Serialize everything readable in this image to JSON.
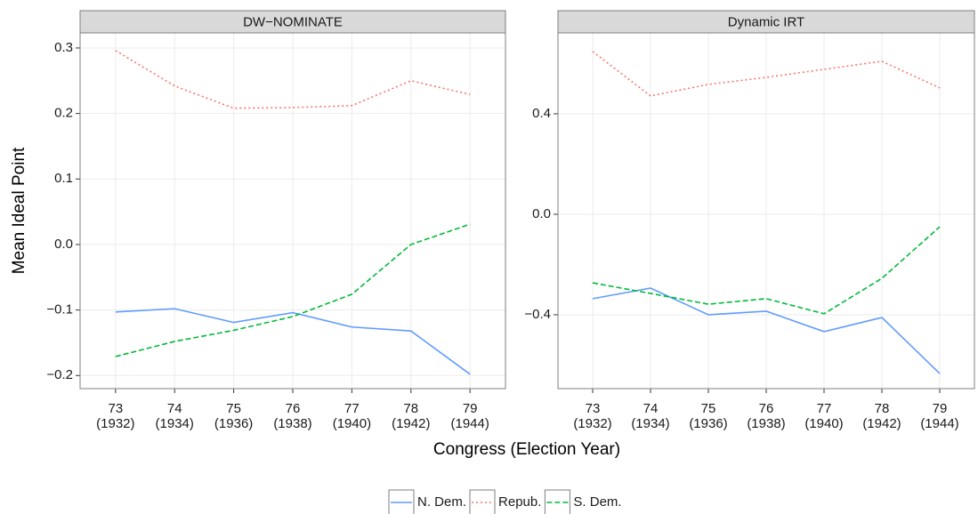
{
  "xlabel": "Congress (Election Year)",
  "ylabel": "Mean Ideal Point",
  "legend": "bottom",
  "chart_data": [
    {
      "type": "line",
      "title": "DW−NOMINATE",
      "categories": [
        "73",
        "74",
        "75",
        "76",
        "77",
        "78",
        "79"
      ],
      "election_years": [
        "(1932)",
        "(1934)",
        "(1936)",
        "(1938)",
        "(1940)",
        "(1942)",
        "(1944)"
      ],
      "ylim": [
        -0.22,
        0.323
      ],
      "yticks": [
        {
          "value": -0.2,
          "label": "−0.2"
        },
        {
          "value": -0.1,
          "label": "−0.1"
        },
        {
          "value": 0,
          "label": "0.0"
        },
        0.1,
        0.2,
        0.3
      ],
      "grid": true,
      "series": [
        {
          "name": "N. Dem.",
          "color": "#619CFF",
          "linestyle": "solid",
          "values": [
            -0.103,
            -0.098,
            -0.119,
            -0.104,
            -0.126,
            -0.132,
            -0.198
          ]
        },
        {
          "name": "Repub.",
          "color": "#F8766D",
          "linestyle": "dotted",
          "values": [
            0.296,
            0.242,
            0.208,
            0.209,
            0.212,
            0.25,
            0.229
          ]
        },
        {
          "name": "S. Dem.",
          "color": "#00BA38",
          "linestyle": "dashed",
          "values": [
            -0.171,
            -0.148,
            -0.131,
            -0.11,
            -0.076,
            0.0,
            0.031
          ]
        }
      ]
    },
    {
      "type": "line",
      "title": "Dynamic IRT",
      "categories": [
        "73",
        "74",
        "75",
        "76",
        "77",
        "78",
        "79"
      ],
      "election_years": [
        "(1932)",
        "(1934)",
        "(1936)",
        "(1938)",
        "(1940)",
        "(1942)",
        "(1944)"
      ],
      "ylim": [
        -0.694,
        0.722
      ],
      "yticks": [
        {
          "value": -0.4,
          "label": "−0.4"
        },
        {
          "value": 0,
          "label": "0.0"
        },
        0.4
      ],
      "grid": true,
      "series": [
        {
          "name": "N. Dem.",
          "color": "#619CFF",
          "linestyle": "solid",
          "values": [
            -0.336,
            -0.294,
            -0.4,
            -0.386,
            -0.467,
            -0.411,
            -0.634
          ]
        },
        {
          "name": "Repub.",
          "color": "#F8766D",
          "linestyle": "dotted",
          "values": [
            0.648,
            0.471,
            0.517,
            0.545,
            0.577,
            0.609,
            0.503
          ]
        },
        {
          "name": "S. Dem.",
          "color": "#00BA38",
          "linestyle": "dashed",
          "values": [
            -0.273,
            -0.315,
            -0.358,
            -0.336,
            -0.396,
            -0.255,
            -0.05
          ]
        }
      ]
    }
  ]
}
